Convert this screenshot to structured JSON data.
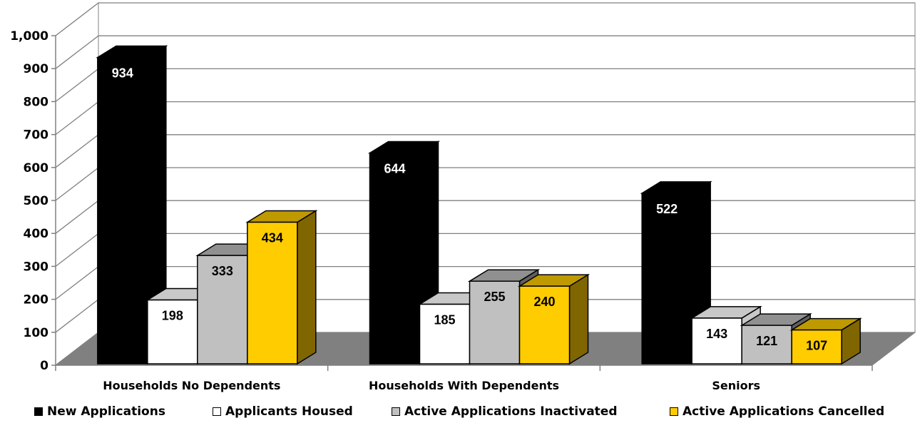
{
  "chart_data": {
    "type": "bar",
    "categories": [
      "Households No Dependents",
      "Households With Dependents",
      "Seniors"
    ],
    "series": [
      {
        "name": "New Applications",
        "values": [
          934,
          644,
          522
        ],
        "color": "#000000",
        "label_color": "#ffffff"
      },
      {
        "name": "Applicants Housed",
        "values": [
          198,
          185,
          143
        ],
        "color": "#ffffff",
        "label_color": "#000000"
      },
      {
        "name": "Active Applications Inactivated",
        "values": [
          333,
          255,
          121
        ],
        "color": "#c0c0c0",
        "label_color": "#000000"
      },
      {
        "name": "Active Applications Cancelled",
        "values": [
          434,
          240,
          107
        ],
        "color": "#ffcc00",
        "label_color": "#000000"
      }
    ],
    "y_ticks": [
      "0",
      "100",
      "200",
      "300",
      "400",
      "500",
      "600",
      "700",
      "800",
      "900",
      "1,000"
    ],
    "ylim": [
      0,
      1000
    ],
    "grid": true,
    "legend_position": "bottom",
    "three_d": true,
    "floor_color": "#808080"
  }
}
